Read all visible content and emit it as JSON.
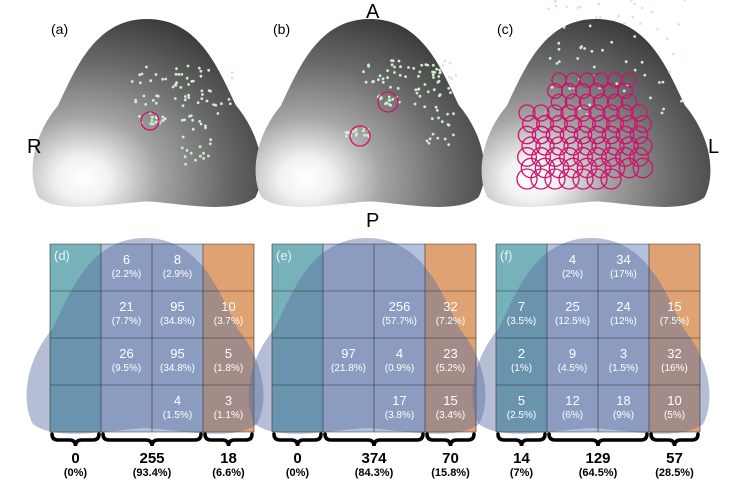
{
  "top_panels": [
    {
      "label": "(a)"
    },
    {
      "label": "(b)"
    },
    {
      "label": "(c)"
    }
  ],
  "orientation": {
    "anterior": "A",
    "posterior": "P",
    "right": "R",
    "left": "L"
  },
  "colors": {
    "surface_dark": "#3a3a3a",
    "surface_light": "#ffffff",
    "points": "#cfeecf",
    "circles": "#d0106e",
    "zone_left": "#5fa3ad",
    "zone_mid": "#a7b6d6",
    "zone_right": "#d9925a",
    "cell_text": "#ffffff"
  },
  "grid_panels": [
    {
      "label": "(d)",
      "cells": [
        [
          "",
          "6\n(2.2%)",
          "8\n(2.9%)",
          ""
        ],
        [
          "",
          "21\n(7.7%)",
          "95\n(34.8%)",
          "10\n(3.7%)"
        ],
        [
          "",
          "26\n(9.5%)",
          "95\n(34.8%)",
          "5\n(1.8%)"
        ],
        [
          "",
          "",
          "4\n(1.5%)",
          "3\n(1.1%)"
        ]
      ],
      "sums": [
        {
          "count": "0",
          "pct": "(0%)"
        },
        {
          "count": "255",
          "pct": "(93.4%)"
        },
        {
          "count": "18",
          "pct": "(6.6%)"
        }
      ]
    },
    {
      "label": "(e)",
      "cells": [
        [
          "",
          "",
          "",
          ""
        ],
        [
          "",
          "",
          "256\n(57.7%)",
          "32\n(7.2%)"
        ],
        [
          "",
          "97\n(21.8%)",
          "4\n(0.9%)",
          "23\n(5.2%)"
        ],
        [
          "",
          "",
          "17\n(3.8%)",
          "15\n(3.4%)"
        ]
      ],
      "sums": [
        {
          "count": "0",
          "pct": "(0%)"
        },
        {
          "count": "374",
          "pct": "(84.3%)"
        },
        {
          "count": "70",
          "pct": "(15.8%)"
        }
      ]
    },
    {
      "label": "(f)",
      "cells": [
        [
          "",
          "4\n(2%)",
          "34\n(17%)",
          ""
        ],
        [
          "7\n(3.5%)",
          "25\n(12.5%)",
          "24\n(12%)",
          "15\n(7.5%)"
        ],
        [
          "2\n(1%)",
          "9\n(4.5%)",
          "3\n(1.5%)",
          "32\n(16%)"
        ],
        [
          "5\n(2.5%)",
          "12\n(6%)",
          "18\n(9%)",
          "10\n(5%)"
        ]
      ],
      "sums": [
        {
          "count": "14",
          "pct": "(7%)"
        },
        {
          "count": "129",
          "pct": "(64.5%)"
        },
        {
          "count": "57",
          "pct": "(28.5%)"
        }
      ]
    }
  ]
}
